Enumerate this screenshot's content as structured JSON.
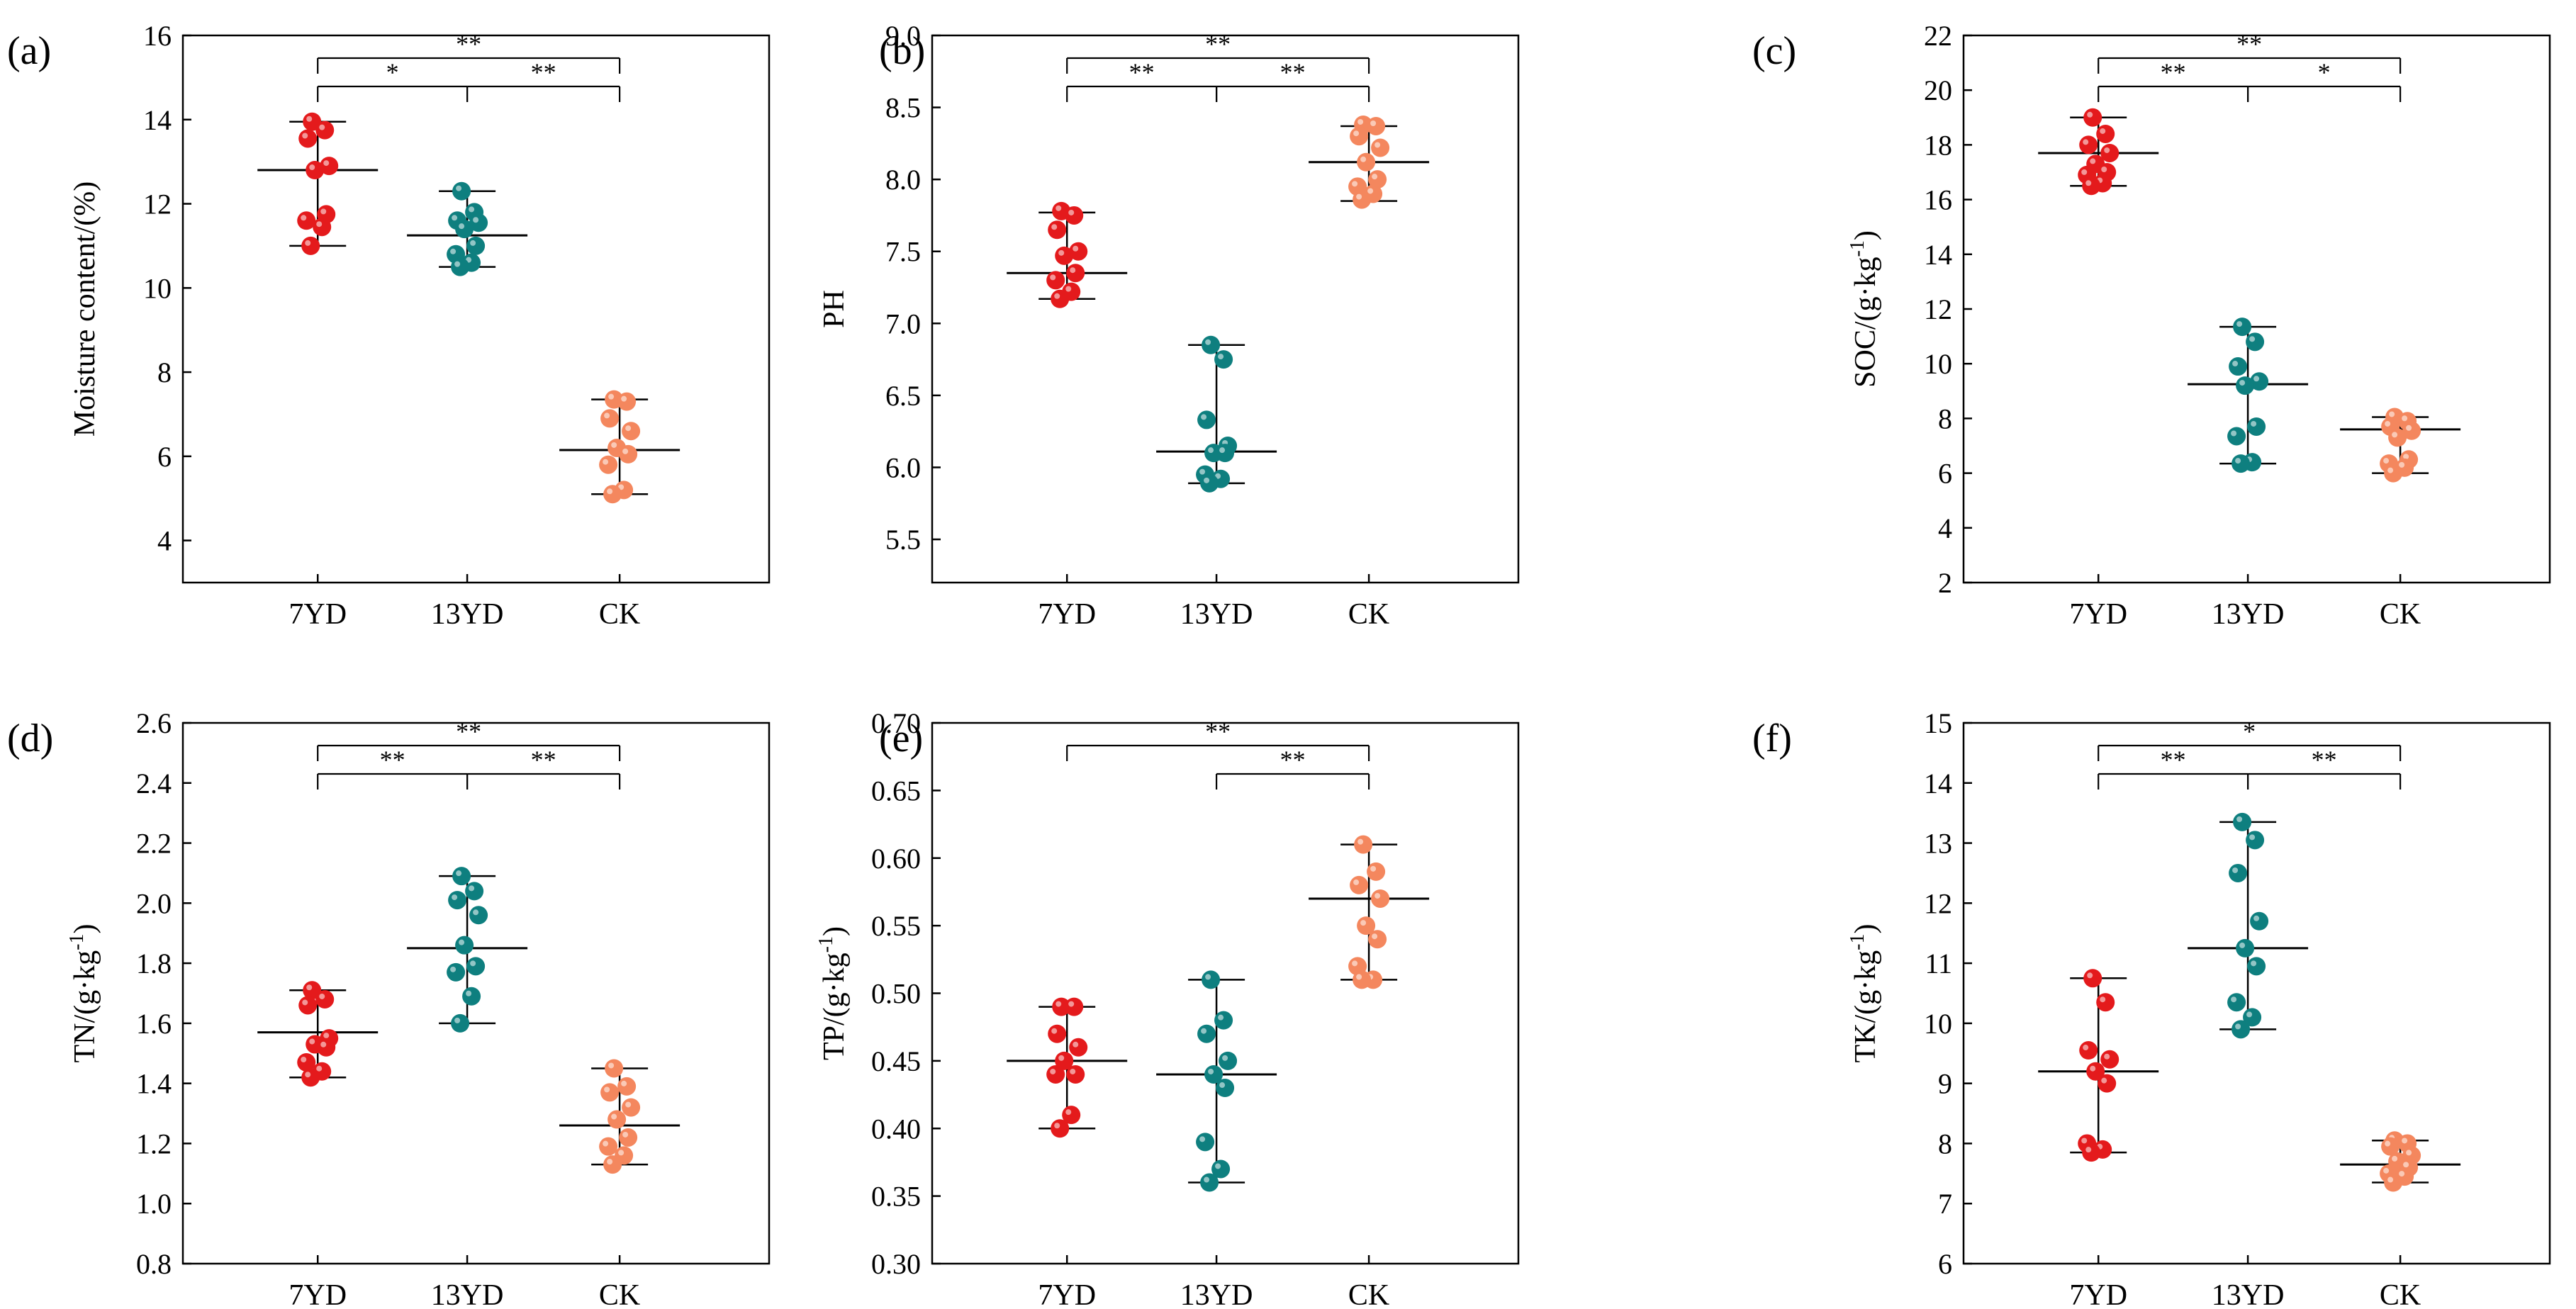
{
  "colors": {
    "7YD": "#e41a1c",
    "13YD": "#0e7f7f",
    "CK": "#f4875e"
  },
  "chart_data": [
    {
      "panel_label": "(a)",
      "type": "scatter",
      "ylabel": "Moisture content/(%)",
      "ylabel_sup": "",
      "ylim": [
        3,
        16
      ],
      "yticks": [
        4,
        6,
        8,
        10,
        12,
        14,
        16
      ],
      "ytick_labels": [
        "4",
        "6",
        "8",
        "10",
        "12",
        "14",
        "16"
      ],
      "categories": [
        "7YD",
        "13YD",
        "CK"
      ],
      "groups": [
        {
          "name": "7YD",
          "mean": 12.8,
          "min": 11.0,
          "max": 13.95,
          "points": [
            13.95,
            13.75,
            13.55,
            12.9,
            12.8,
            11.75,
            11.6,
            11.45,
            11.0
          ]
        },
        {
          "name": "13YD",
          "mean": 11.25,
          "min": 10.5,
          "max": 12.3,
          "points": [
            12.3,
            11.8,
            11.6,
            11.55,
            11.4,
            11.0,
            10.8,
            10.6,
            10.5
          ]
        },
        {
          "name": "CK",
          "mean": 6.15,
          "min": 5.1,
          "max": 7.35,
          "points": [
            7.35,
            7.3,
            6.9,
            6.6,
            6.2,
            6.05,
            5.8,
            5.2,
            5.1
          ]
        }
      ],
      "significance": [
        {
          "from": 0,
          "to": 2,
          "label": "**",
          "level": 0
        },
        {
          "from": 0,
          "to": 1,
          "label": "*",
          "level": 1
        },
        {
          "from": 1,
          "to": 2,
          "label": "**",
          "level": 1
        }
      ]
    },
    {
      "panel_label": "(b)",
      "type": "scatter",
      "ylabel": "PH",
      "ylabel_sup": "",
      "ylim": [
        5.2,
        9.0
      ],
      "yticks": [
        5.5,
        6.0,
        6.5,
        7.0,
        7.5,
        8.0,
        8.5,
        9.0
      ],
      "ytick_labels": [
        "5.5",
        "6.0",
        "6.5",
        "7.0",
        "7.5",
        "8.0",
        "8.5",
        "9.0"
      ],
      "categories": [
        "7YD",
        "13YD",
        "CK"
      ],
      "groups": [
        {
          "name": "7YD",
          "mean": 7.35,
          "min": 7.17,
          "max": 7.77,
          "points": [
            7.78,
            7.75,
            7.65,
            7.5,
            7.47,
            7.35,
            7.3,
            7.22,
            7.17
          ]
        },
        {
          "name": "13YD",
          "mean": 6.11,
          "min": 5.89,
          "max": 6.85,
          "points": [
            6.85,
            6.75,
            6.33,
            6.15,
            6.1,
            6.1,
            5.95,
            5.92,
            5.89
          ]
        },
        {
          "name": "CK",
          "mean": 8.12,
          "min": 7.85,
          "max": 8.37,
          "points": [
            8.38,
            8.37,
            8.3,
            8.22,
            8.12,
            8.0,
            7.95,
            7.9,
            7.86
          ]
        }
      ],
      "significance": [
        {
          "from": 0,
          "to": 2,
          "label": "**",
          "level": 0
        },
        {
          "from": 0,
          "to": 1,
          "label": "**",
          "level": 1
        },
        {
          "from": 1,
          "to": 2,
          "label": "**",
          "level": 1
        }
      ]
    },
    {
      "panel_label": "(c)",
      "type": "scatter",
      "ylabel": "SOC/(g·kg",
      "ylabel_sup": "-1",
      "ylabel_suffix": ")",
      "ylim": [
        2,
        22
      ],
      "yticks": [
        2,
        4,
        6,
        8,
        10,
        12,
        14,
        16,
        18,
        20,
        22
      ],
      "ytick_labels": [
        "2",
        "4",
        "6",
        "8",
        "10",
        "12",
        "14",
        "16",
        "18",
        "20",
        "22"
      ],
      "categories": [
        "7YD",
        "13YD",
        "CK"
      ],
      "groups": [
        {
          "name": "7YD",
          "mean": 17.7,
          "min": 16.5,
          "max": 19.0,
          "points": [
            19.0,
            18.4,
            18.0,
            17.7,
            17.3,
            17.0,
            16.9,
            16.6,
            16.5
          ]
        },
        {
          "name": "13YD",
          "mean": 9.25,
          "min": 6.35,
          "max": 11.35,
          "points": [
            11.35,
            10.8,
            9.9,
            9.35,
            9.2,
            7.7,
            7.35,
            6.4,
            6.35
          ]
        },
        {
          "name": "CK",
          "mean": 7.6,
          "min": 6.0,
          "max": 8.05,
          "points": [
            8.05,
            7.9,
            7.7,
            7.55,
            7.3,
            6.5,
            6.35,
            6.2,
            6.0
          ]
        }
      ],
      "significance": [
        {
          "from": 0,
          "to": 2,
          "label": "**",
          "level": 0
        },
        {
          "from": 0,
          "to": 1,
          "label": "**",
          "level": 1
        },
        {
          "from": 1,
          "to": 2,
          "label": "*",
          "level": 1
        }
      ]
    },
    {
      "panel_label": "(d)",
      "type": "scatter",
      "ylabel": "TN/(g·kg",
      "ylabel_sup": "-1",
      "ylabel_suffix": ")",
      "ylim": [
        0.8,
        2.6
      ],
      "yticks": [
        0.8,
        1.0,
        1.2,
        1.4,
        1.6,
        1.8,
        2.0,
        2.2,
        2.4,
        2.6
      ],
      "ytick_labels": [
        "0.8",
        "1.0",
        "1.2",
        "1.4",
        "1.6",
        "1.8",
        "2.0",
        "2.2",
        "2.4",
        "2.6"
      ],
      "categories": [
        "7YD",
        "13YD",
        "CK"
      ],
      "groups": [
        {
          "name": "7YD",
          "mean": 1.57,
          "min": 1.42,
          "max": 1.71,
          "points": [
            1.71,
            1.68,
            1.66,
            1.55,
            1.53,
            1.52,
            1.47,
            1.44,
            1.42
          ]
        },
        {
          "name": "13YD",
          "mean": 1.85,
          "min": 1.6,
          "max": 2.09,
          "points": [
            2.09,
            2.04,
            2.01,
            1.96,
            1.86,
            1.79,
            1.77,
            1.69,
            1.6
          ]
        },
        {
          "name": "CK",
          "mean": 1.26,
          "min": 1.13,
          "max": 1.45,
          "points": [
            1.45,
            1.39,
            1.37,
            1.32,
            1.28,
            1.22,
            1.19,
            1.16,
            1.13
          ]
        }
      ],
      "significance": [
        {
          "from": 0,
          "to": 2,
          "label": "**",
          "level": 0
        },
        {
          "from": 0,
          "to": 1,
          "label": "**",
          "level": 1
        },
        {
          "from": 1,
          "to": 2,
          "label": "**",
          "level": 1
        }
      ]
    },
    {
      "panel_label": "(e)",
      "type": "scatter",
      "ylabel": "TP/(g·kg",
      "ylabel_sup": "-1",
      "ylabel_suffix": ")",
      "ylim": [
        0.3,
        0.7
      ],
      "yticks": [
        0.3,
        0.35,
        0.4,
        0.45,
        0.5,
        0.55,
        0.6,
        0.65,
        0.7
      ],
      "ytick_labels": [
        "0.30",
        "0.35",
        "0.40",
        "0.45",
        "0.50",
        "0.55",
        "0.60",
        "0.65",
        "0.70"
      ],
      "categories": [
        "7YD",
        "13YD",
        "CK"
      ],
      "groups": [
        {
          "name": "7YD",
          "mean": 0.45,
          "min": 0.4,
          "max": 0.49,
          "points": [
            0.49,
            0.49,
            0.47,
            0.46,
            0.45,
            0.44,
            0.44,
            0.41,
            0.4
          ]
        },
        {
          "name": "13YD",
          "mean": 0.44,
          "min": 0.36,
          "max": 0.51,
          "points": [
            0.51,
            0.48,
            0.47,
            0.45,
            0.44,
            0.43,
            0.39,
            0.37,
            0.36
          ]
        },
        {
          "name": "CK",
          "mean": 0.57,
          "min": 0.51,
          "max": 0.61,
          "points": [
            0.61,
            0.59,
            0.58,
            0.57,
            0.55,
            0.54,
            0.52,
            0.51,
            0.51
          ]
        }
      ],
      "significance": [
        {
          "from": 0,
          "to": 2,
          "label": "**",
          "level": 0
        },
        {
          "from": 1,
          "to": 2,
          "label": "**",
          "level": 1
        }
      ]
    },
    {
      "panel_label": "(f)",
      "type": "scatter",
      "ylabel": "TK/(g·kg",
      "ylabel_sup": "-1",
      "ylabel_suffix": ")",
      "ylim": [
        6,
        15
      ],
      "yticks": [
        6,
        7,
        8,
        9,
        10,
        11,
        12,
        13,
        14,
        15
      ],
      "ytick_labels": [
        "6",
        "7",
        "8",
        "9",
        "10",
        "11",
        "12",
        "13",
        "14",
        "15"
      ],
      "categories": [
        "7YD",
        "13YD",
        "CK"
      ],
      "groups": [
        {
          "name": "7YD",
          "mean": 9.2,
          "min": 7.85,
          "max": 10.75,
          "points": [
            10.75,
            10.35,
            9.55,
            9.4,
            9.2,
            9.0,
            8.0,
            7.9,
            7.85
          ]
        },
        {
          "name": "13YD",
          "mean": 11.25,
          "min": 9.9,
          "max": 13.35,
          "points": [
            13.35,
            13.05,
            12.5,
            11.7,
            11.25,
            10.95,
            10.35,
            10.1,
            9.9
          ]
        },
        {
          "name": "CK",
          "mean": 7.65,
          "min": 7.35,
          "max": 8.05,
          "points": [
            8.05,
            8.0,
            7.95,
            7.8,
            7.7,
            7.6,
            7.5,
            7.45,
            7.35
          ]
        }
      ],
      "significance": [
        {
          "from": 0,
          "to": 2,
          "label": "*",
          "level": 0
        },
        {
          "from": 0,
          "to": 1,
          "label": "**",
          "level": 1
        },
        {
          "from": 1,
          "to": 2,
          "label": "**",
          "level": 1
        }
      ]
    }
  ]
}
